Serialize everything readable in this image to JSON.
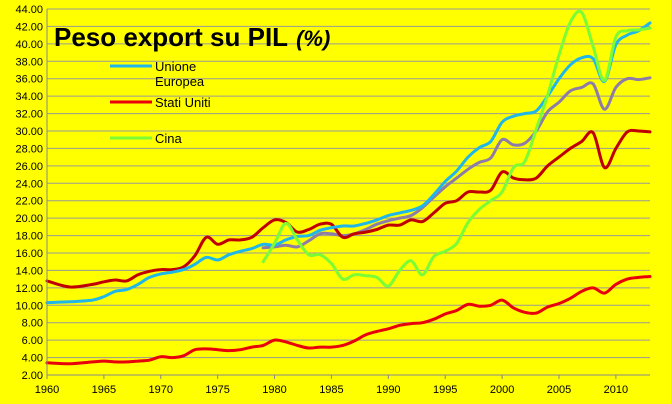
{
  "chart_data": {
    "type": "line",
    "title": "Peso export su PIL",
    "title_unit": "(%)",
    "xlabel": "",
    "ylabel": "",
    "ylim": [
      2,
      44
    ],
    "xlim": [
      1960,
      2013
    ],
    "y_ticks": [
      "2.00",
      "4.00",
      "6.00",
      "8.00",
      "10.00",
      "12.00",
      "14.00",
      "16.00",
      "18.00",
      "20.00",
      "22.00",
      "24.00",
      "26.00",
      "28.00",
      "30.00",
      "32.00",
      "34.00",
      "36.00",
      "38.00",
      "40.00",
      "42.00",
      "44.00"
    ],
    "x_ticks": [
      "1960",
      "1965",
      "1970",
      "1975",
      "1980",
      "1985",
      "1990",
      "1995",
      "2000",
      "2005",
      "2010"
    ],
    "grid": true,
    "legend": "upper-left",
    "series": [
      {
        "name": "Unione Europea",
        "color": "#1fb7ea",
        "x": [
          1960,
          1962,
          1964,
          1965,
          1966,
          1967,
          1968,
          1969,
          1970,
          1971,
          1972,
          1973,
          1974,
          1975,
          1976,
          1977,
          1978,
          1979,
          1980,
          1981,
          1982,
          1983,
          1984,
          1985,
          1986,
          1987,
          1988,
          1989,
          1990,
          1991,
          1992,
          1993,
          1994,
          1995,
          1996,
          1997,
          1998,
          1999,
          2000,
          2001,
          2002,
          2003,
          2004,
          2005,
          2006,
          2007,
          2008,
          2009,
          2010,
          2011,
          2012,
          2013
        ],
        "values": [
          10.3,
          10.4,
          10.6,
          11.0,
          11.6,
          11.8,
          12.4,
          13.2,
          13.6,
          13.8,
          14.1,
          14.7,
          15.5,
          15.2,
          15.8,
          16.2,
          16.5,
          17.0,
          16.9,
          17.5,
          17.9,
          18.0,
          18.6,
          18.9,
          19.1,
          19.1,
          19.4,
          19.8,
          20.3,
          20.6,
          20.9,
          21.4,
          22.7,
          24.2,
          25.4,
          27.0,
          28.1,
          28.8,
          31.0,
          31.7,
          32.0,
          32.3,
          34.0,
          36.0,
          37.6,
          38.4,
          38.3,
          35.7,
          39.9,
          41.0,
          41.5,
          42.4
        ]
      },
      {
        "name": "Stati Uniti",
        "color": "#e8000b",
        "x": [
          1960,
          1962,
          1964,
          1965,
          1966,
          1967,
          1968,
          1969,
          1970,
          1971,
          1972,
          1973,
          1974,
          1975,
          1976,
          1977,
          1978,
          1979,
          1980,
          1981,
          1982,
          1983,
          1984,
          1985,
          1986,
          1987,
          1988,
          1989,
          1990,
          1991,
          1992,
          1993,
          1994,
          1995,
          1996,
          1997,
          1998,
          1999,
          2000,
          2001,
          2002,
          2003,
          2004,
          2005,
          2006,
          2007,
          2008,
          2009,
          2010,
          2011,
          2012,
          2013
        ],
        "values": [
          3.4,
          3.3,
          3.5,
          3.6,
          3.5,
          3.5,
          3.6,
          3.7,
          4.1,
          4.0,
          4.2,
          4.9,
          5.0,
          4.9,
          4.8,
          4.9,
          5.2,
          5.4,
          6.0,
          5.8,
          5.4,
          5.1,
          5.2,
          5.2,
          5.4,
          5.9,
          6.6,
          7.0,
          7.3,
          7.7,
          7.9,
          8.0,
          8.4,
          9.0,
          9.4,
          10.1,
          9.9,
          10.0,
          10.6,
          9.7,
          9.2,
          9.1,
          9.8,
          10.2,
          10.8,
          11.6,
          12.0,
          11.4,
          12.4,
          13.0,
          13.2,
          13.3
        ]
      },
      {
        "name": "Cina",
        "color": "#7cfc35",
        "x": [
          1979,
          1980,
          1981,
          1982,
          1983,
          1984,
          1985,
          1986,
          1987,
          1988,
          1989,
          1990,
          1991,
          1992,
          1993,
          1994,
          1995,
          1996,
          1997,
          1998,
          1999,
          2000,
          2001,
          2002,
          2003,
          2004,
          2005,
          2006,
          2007,
          2008,
          2009,
          2010,
          2011,
          2012,
          2013
        ],
        "values": [
          15.0,
          17.1,
          19.4,
          17.5,
          15.8,
          15.8,
          14.8,
          13.0,
          13.5,
          13.4,
          13.2,
          12.2,
          14.0,
          15.1,
          13.5,
          15.6,
          16.2,
          17.1,
          19.5,
          21.0,
          22.0,
          23.0,
          25.8,
          26.5,
          30.2,
          34.1,
          38.7,
          42.5,
          43.6,
          39.7,
          35.8,
          40.8,
          41.5,
          41.6,
          41.8
        ]
      },
      {
        "name": "",
        "color": "#8e7ca8",
        "x": [
          1979,
          1980,
          1981,
          1982,
          1983,
          1984,
          1985,
          1986,
          1987,
          1988,
          1989,
          1990,
          1991,
          1992,
          1993,
          1994,
          1995,
          1996,
          1997,
          1998,
          1999,
          2000,
          2001,
          2002,
          2003,
          2004,
          2005,
          2006,
          2007,
          2008,
          2009,
          2010,
          2011,
          2012,
          2013
        ],
        "values": [
          16.6,
          16.7,
          16.9,
          16.7,
          17.4,
          18.2,
          18.2,
          18.0,
          18.2,
          18.7,
          19.3,
          19.7,
          20.0,
          20.3,
          21.2,
          22.4,
          23.6,
          24.6,
          25.6,
          26.4,
          26.9,
          29.0,
          28.4,
          28.6,
          30.0,
          32.2,
          33.3,
          34.6,
          35.0,
          35.4,
          32.5,
          35.0,
          36.0,
          35.9,
          36.1
        ]
      },
      {
        "name": "",
        "color": "#c00000",
        "x": [
          1960,
          1962,
          1964,
          1965,
          1966,
          1967,
          1968,
          1969,
          1970,
          1971,
          1972,
          1973,
          1974,
          1975,
          1976,
          1977,
          1978,
          1979,
          1980,
          1981,
          1982,
          1983,
          1984,
          1985,
          1986,
          1987,
          1988,
          1989,
          1990,
          1991,
          1992,
          1993,
          1994,
          1995,
          1996,
          1997,
          1998,
          1999,
          2000,
          2001,
          2002,
          2003,
          2004,
          2005,
          2006,
          2007,
          2008,
          2009,
          2010,
          2011,
          2012,
          2013
        ],
        "values": [
          12.8,
          12.1,
          12.4,
          12.7,
          12.9,
          12.8,
          13.5,
          13.9,
          14.1,
          14.1,
          14.4,
          15.7,
          17.8,
          17.0,
          17.5,
          17.5,
          17.8,
          18.9,
          19.8,
          19.5,
          18.4,
          18.7,
          19.3,
          19.3,
          17.8,
          18.2,
          18.4,
          18.7,
          19.2,
          19.2,
          19.8,
          19.6,
          20.6,
          21.7,
          22.0,
          23.0,
          23.0,
          23.2,
          25.3,
          24.6,
          24.4,
          24.6,
          26.0,
          27.0,
          28.0,
          28.8,
          29.8,
          25.8,
          28.0,
          29.9,
          30.0,
          29.9
        ]
      }
    ]
  }
}
